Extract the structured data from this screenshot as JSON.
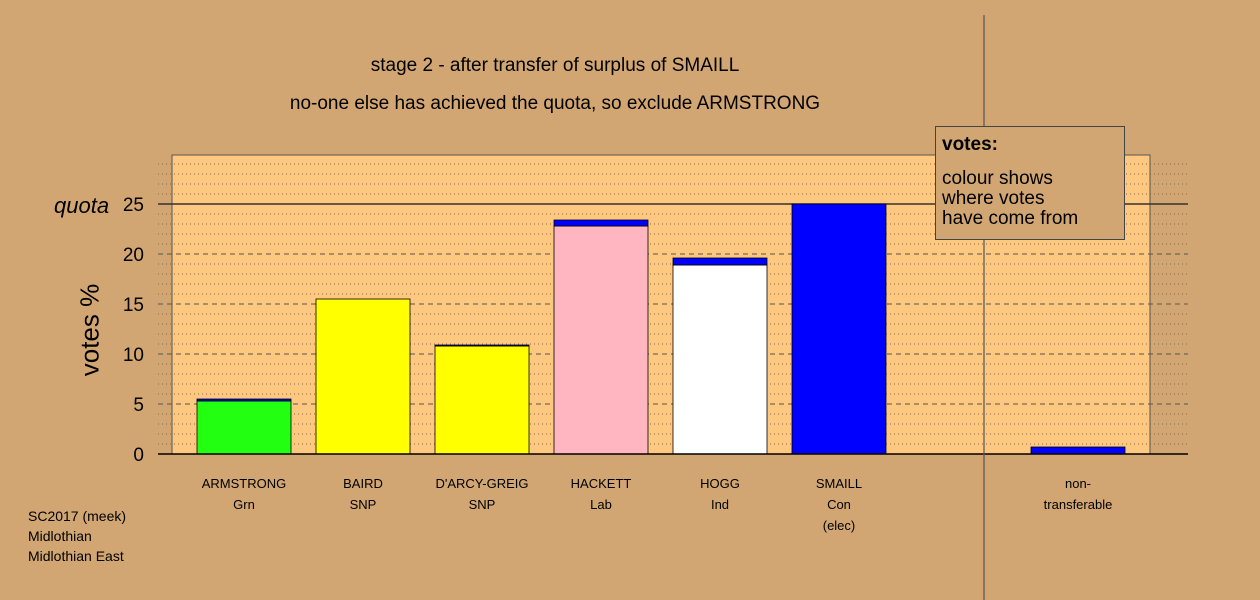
{
  "title": "stage 2 - after transfer of surplus of SMAILL",
  "subtitle": "no-one else has achieved the quota, so exclude ARMSTRONG",
  "legend": {
    "heading": "votes:",
    "body": [
      "colour shows",
      "where votes",
      "have come from"
    ]
  },
  "footer": [
    "SC2017 (meek)",
    "Midlothian",
    "Midlothian East"
  ],
  "chart_data": {
    "type": "bar",
    "ylabel": "votes %",
    "ylim": [
      0,
      30
    ],
    "yticks": [
      "0",
      "5",
      "10",
      "15",
      "20",
      "25"
    ],
    "quota_label": "quota",
    "quota": 25,
    "grid": true,
    "bars": [
      {
        "label": [
          "ARMSTRONG",
          "Grn"
        ],
        "segments": [
          {
            "value": 5.3,
            "color": "#22ff11"
          },
          {
            "value": 0.2,
            "color": "#0000ff"
          }
        ]
      },
      {
        "label": [
          "BAIRD",
          "SNP"
        ],
        "segments": [
          {
            "value": 15.5,
            "color": "#ffff00"
          }
        ]
      },
      {
        "label": [
          "D'ARCY-GREIG",
          "SNP"
        ],
        "segments": [
          {
            "value": 10.8,
            "color": "#ffff00"
          },
          {
            "value": 0.1,
            "color": "#0000ff"
          }
        ]
      },
      {
        "label": [
          "HACKETT",
          "Lab"
        ],
        "segments": [
          {
            "value": 22.8,
            "color": "#ffb6c1"
          },
          {
            "value": 0.6,
            "color": "#0000ff"
          }
        ]
      },
      {
        "label": [
          "HOGG",
          "Ind"
        ],
        "segments": [
          {
            "value": 18.9,
            "color": "#ffffff"
          },
          {
            "value": 0.7,
            "color": "#0000ff"
          }
        ]
      },
      {
        "label": [
          "SMAILL",
          "Con",
          "(elec)"
        ],
        "segments": [
          {
            "value": 25.0,
            "color": "#0000ff"
          }
        ]
      },
      {
        "label": [
          "non-",
          "transferable"
        ],
        "segments": [
          {
            "value": 0.7,
            "color": "#0000ff"
          }
        ]
      }
    ]
  }
}
